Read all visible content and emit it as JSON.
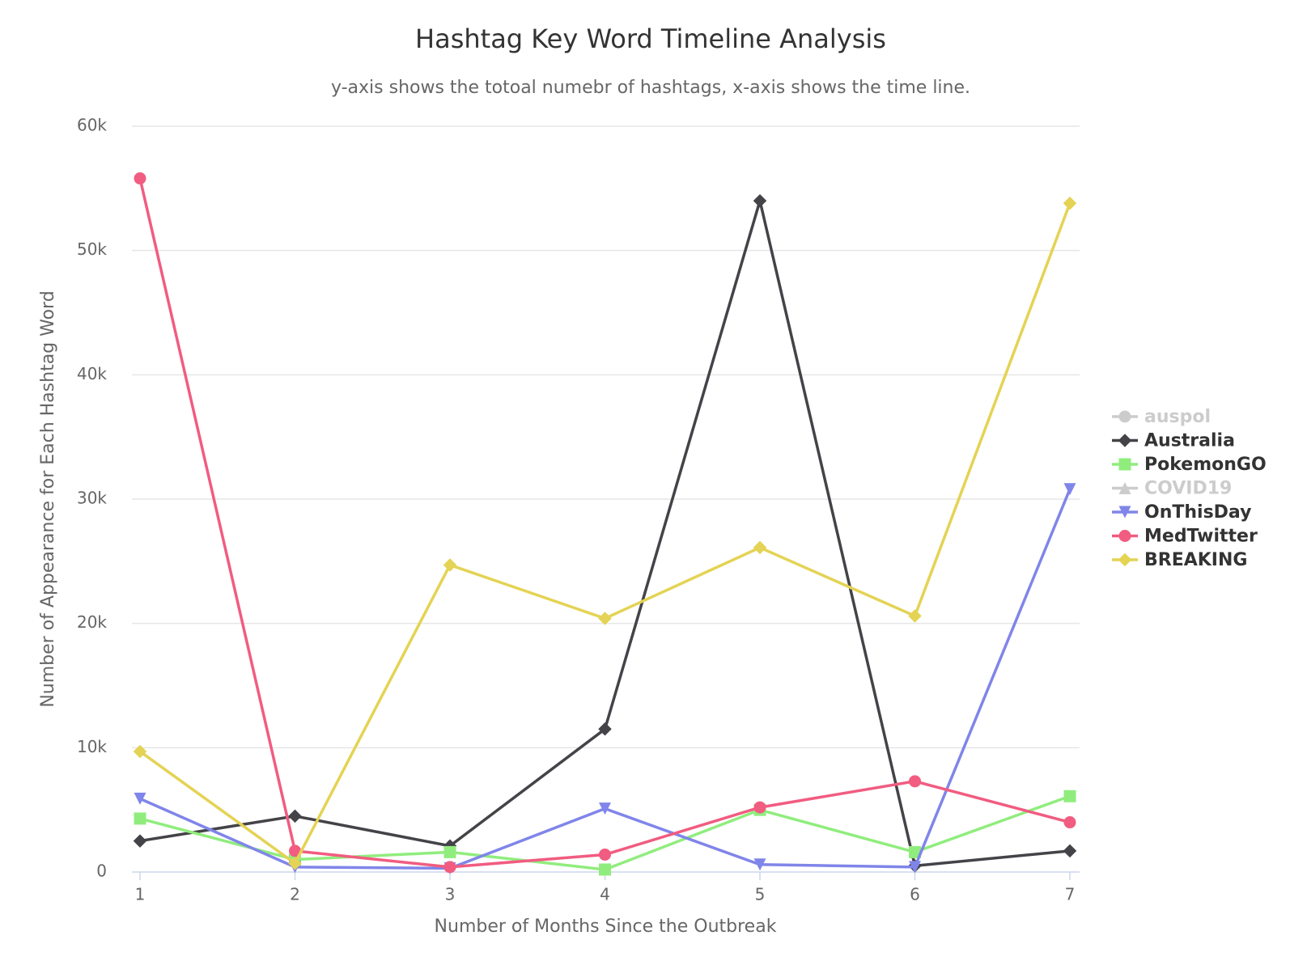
{
  "chart_data": {
    "type": "line",
    "title": "Hashtag Key Word Timeline Analysis",
    "subtitle": "y-axis shows the totoal numebr of hashtags, x-axis shows the time line.",
    "x_label": "Number of Months Since the Outbreak",
    "y_label": "Number of Appearance for Each Hashtag Word",
    "x": [
      1,
      2,
      3,
      4,
      5,
      6,
      7
    ],
    "xlim": [
      1,
      7
    ],
    "xticks": [
      1,
      2,
      3,
      4,
      5,
      6,
      7
    ],
    "ylim": [
      0,
      60000
    ],
    "yticks": [
      0,
      {
        "value": 10000,
        "label": "10k"
      },
      {
        "value": 20000,
        "label": "20k"
      },
      {
        "value": 30000,
        "label": "30k"
      },
      {
        "value": 40000,
        "label": "40k"
      },
      {
        "value": 50000,
        "label": "50k"
      },
      {
        "value": 60000,
        "label": "60k"
      }
    ],
    "grid": true,
    "legend": "right",
    "series": [
      {
        "name": "auspol",
        "color": "#cccccc",
        "marker": "circle",
        "visible": false
      },
      {
        "name": "Australia",
        "color": "#434348",
        "marker": "diamond",
        "values": [
          2500,
          4500,
          2100,
          11500,
          54000,
          500,
          1700
        ]
      },
      {
        "name": "PokemonGO",
        "color": "#90ed7d",
        "marker": "square",
        "values": [
          4300,
          1000,
          1600,
          200,
          5000,
          1600,
          6100
        ]
      },
      {
        "name": "COVID19",
        "color": "#cccccc",
        "marker": "triangle",
        "visible": false
      },
      {
        "name": "OnThisDay",
        "color": "#8085e9",
        "marker": "triangle-down",
        "values": [
          5900,
          400,
          300,
          5100,
          600,
          400,
          30800
        ]
      },
      {
        "name": "MedTwitter",
        "color": "#f15c80",
        "marker": "circle",
        "values": [
          55800,
          1700,
          400,
          1400,
          5200,
          7300,
          4000
        ]
      },
      {
        "name": "BREAKING",
        "color": "#e4d354",
        "marker": "diamond",
        "values": [
          9700,
          700,
          24700,
          20400,
          26100,
          20600,
          53800
        ]
      }
    ]
  }
}
